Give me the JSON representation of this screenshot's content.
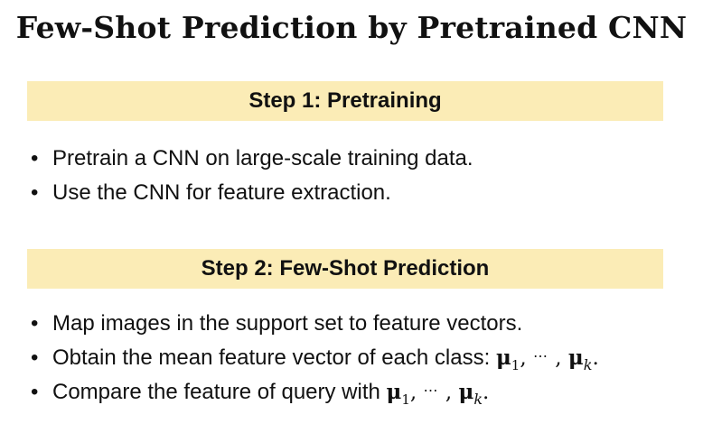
{
  "slide": {
    "title": "Few-Shot Prediction by Pretrained CNN",
    "step1": {
      "heading": "Step 1: Pretraining",
      "bullets": [
        "Pretrain a CNN on large-scale training data.",
        "Use the CNN for feature extraction."
      ]
    },
    "step2": {
      "heading": "Step 2: Few-Shot Prediction",
      "bullets": [
        "Map images in the support set to feature vectors.",
        "Obtain the mean feature vector of each class: ",
        "Compare the feature of query with "
      ]
    },
    "math": {
      "mu": "μ",
      "first_index": "1",
      "separator": ",",
      "dots": "⋯",
      "last_index": "k",
      "period": "."
    },
    "bullet_symbol": "•",
    "colors": {
      "banner_background": "#fbecb6",
      "text": "#111111",
      "background": "#ffffff"
    }
  }
}
